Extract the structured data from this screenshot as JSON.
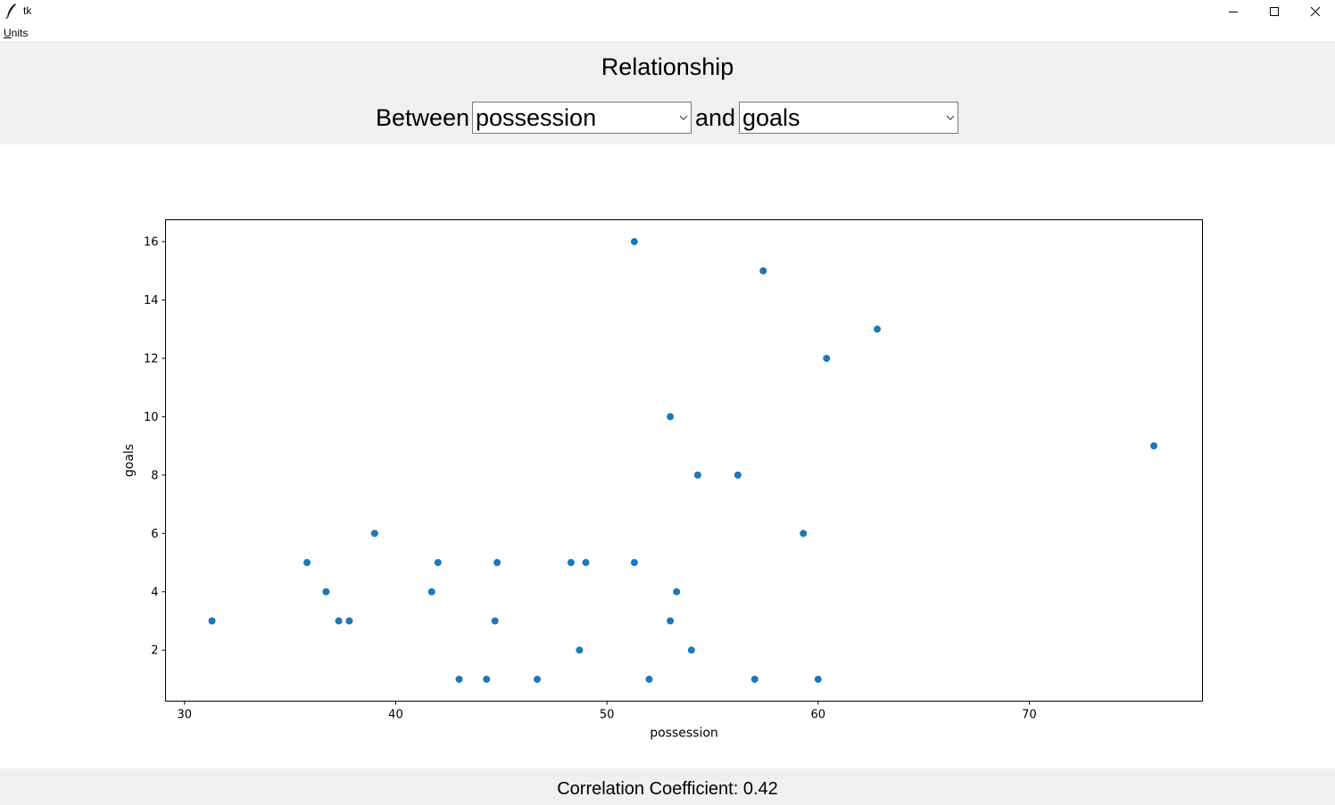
{
  "window": {
    "title": "tk",
    "icon": "feather-icon"
  },
  "menu": {
    "items": [
      {
        "label": "Units",
        "mnemonic": "U",
        "rest": "nits"
      }
    ]
  },
  "controls": {
    "heading": "Relationship",
    "between_label": "Between",
    "and_label": "and",
    "x_variable": "possession",
    "y_variable": "goals"
  },
  "chart_data": {
    "type": "scatter",
    "xlabel": "possession",
    "ylabel": "goals",
    "xlim": [
      29.1,
      78.2
    ],
    "ylim": [
      0.25,
      16.75
    ],
    "xticks": [
      30,
      40,
      50,
      60,
      70
    ],
    "yticks": [
      2,
      4,
      6,
      8,
      10,
      12,
      14,
      16
    ],
    "color": "#1f77b4",
    "grid": false,
    "points": [
      {
        "x": 31.3,
        "y": 3
      },
      {
        "x": 35.8,
        "y": 5
      },
      {
        "x": 36.7,
        "y": 4
      },
      {
        "x": 37.3,
        "y": 3
      },
      {
        "x": 37.8,
        "y": 3
      },
      {
        "x": 39.0,
        "y": 6
      },
      {
        "x": 41.7,
        "y": 4
      },
      {
        "x": 42.0,
        "y": 5
      },
      {
        "x": 43.0,
        "y": 1
      },
      {
        "x": 44.3,
        "y": 1
      },
      {
        "x": 44.7,
        "y": 3
      },
      {
        "x": 44.8,
        "y": 5
      },
      {
        "x": 46.7,
        "y": 1
      },
      {
        "x": 48.3,
        "y": 5
      },
      {
        "x": 48.7,
        "y": 2
      },
      {
        "x": 49.0,
        "y": 5
      },
      {
        "x": 51.3,
        "y": 16
      },
      {
        "x": 51.3,
        "y": 5
      },
      {
        "x": 52.0,
        "y": 1
      },
      {
        "x": 53.0,
        "y": 10
      },
      {
        "x": 53.0,
        "y": 3
      },
      {
        "x": 53.3,
        "y": 4
      },
      {
        "x": 54.0,
        "y": 2
      },
      {
        "x": 54.3,
        "y": 8
      },
      {
        "x": 56.2,
        "y": 8
      },
      {
        "x": 57.0,
        "y": 1
      },
      {
        "x": 57.4,
        "y": 15
      },
      {
        "x": 59.3,
        "y": 6
      },
      {
        "x": 60.0,
        "y": 1
      },
      {
        "x": 60.4,
        "y": 12
      },
      {
        "x": 62.8,
        "y": 13
      },
      {
        "x": 75.9,
        "y": 9
      }
    ]
  },
  "footer": {
    "correlation_text": "Correlation Coefficient: 0.42"
  }
}
